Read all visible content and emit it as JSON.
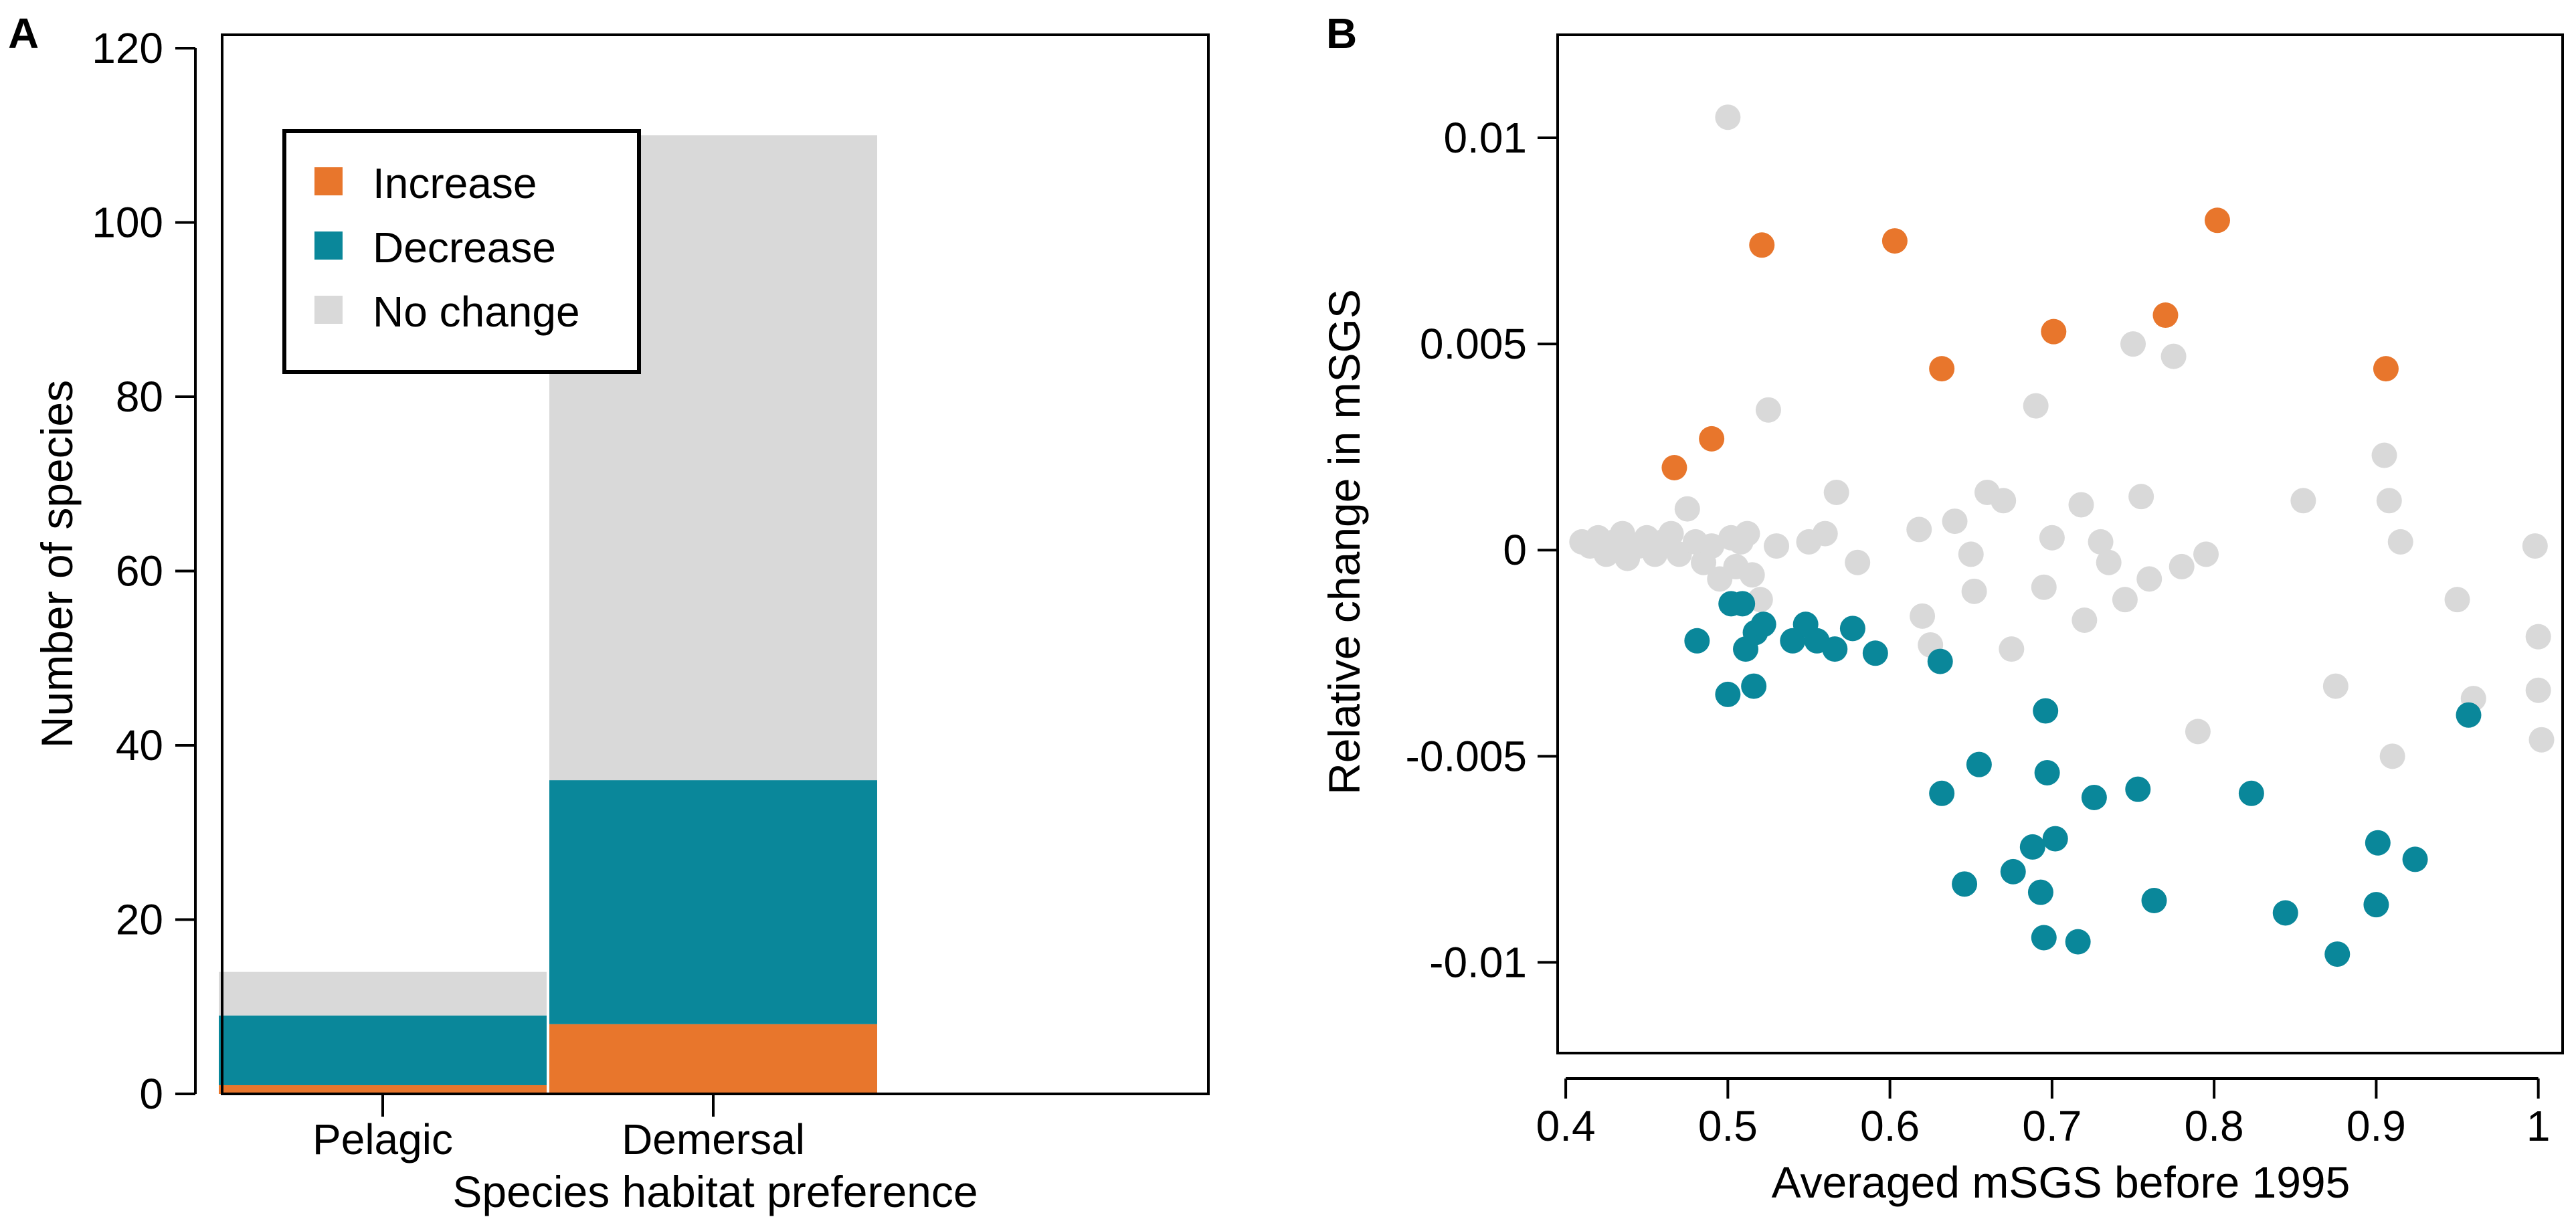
{
  "chart_data": [
    {
      "panel": "A",
      "type": "bar",
      "stacked": true,
      "categories": [
        "Pelagic",
        "Demersal"
      ],
      "series": [
        {
          "name": "Increase",
          "color": "#E8762C",
          "values": [
            1,
            8
          ]
        },
        {
          "name": "Decrease",
          "color": "#0A879A",
          "values": [
            8,
            28
          ]
        },
        {
          "name": "No change",
          "color": "#D9D9D9",
          "values": [
            5,
            74
          ]
        }
      ],
      "xlabel": "Species habitat preference",
      "ylabel": "Number of species",
      "ylim": [
        0,
        120
      ],
      "yticks": [
        0,
        20,
        40,
        60,
        80,
        100,
        120
      ],
      "legend": {
        "placement": "top-left",
        "entries": [
          "Increase",
          "Decrease",
          "No change"
        ]
      }
    },
    {
      "panel": "B",
      "type": "scatter",
      "xlabel": "Averaged mSGS before 1995",
      "ylabel": "Relative change in mSGS",
      "xlim": [
        0.395,
        1.015
      ],
      "ylim": [
        -0.0122,
        0.0125
      ],
      "xticks": [
        0.4,
        0.5,
        0.6,
        0.7,
        0.8,
        0.9,
        1.0
      ],
      "xtick_labels": [
        "0.4",
        "0.5",
        "0.6",
        "0.7",
        "0.8",
        "0.9",
        "1"
      ],
      "yticks": [
        -0.01,
        -0.005,
        0,
        0.005,
        0.01
      ],
      "ytick_labels": [
        "-0.01",
        "-0.005",
        "0",
        "0.005",
        "0.01"
      ],
      "series": [
        {
          "name": "Increase",
          "color": "#E8762C",
          "x": [
            0.467,
            0.49,
            0.521,
            0.603,
            0.632,
            0.701,
            0.77,
            0.802,
            0.906
          ],
          "y": [
            0.002,
            0.0027,
            0.0074,
            0.0075,
            0.0044,
            0.0053,
            0.0057,
            0.008,
            0.0044
          ]
        },
        {
          "name": "Decrease",
          "color": "#0A879A",
          "x": [
            0.481,
            0.502,
            0.5,
            0.511,
            0.509,
            0.517,
            0.522,
            0.516,
            0.54,
            0.548,
            0.555,
            0.566,
            0.577,
            0.591,
            0.631,
            0.632,
            0.655,
            0.646,
            0.676,
            0.688,
            0.693,
            0.697,
            0.696,
            0.702,
            0.695,
            0.716,
            0.726,
            0.753,
            0.763,
            0.823,
            0.844,
            0.876,
            0.901,
            0.9,
            0.924,
            0.957
          ],
          "y": [
            -0.0022,
            -0.0013,
            -0.0035,
            -0.0024,
            -0.0013,
            -0.002,
            -0.0018,
            -0.0033,
            -0.0022,
            -0.0018,
            -0.0022,
            -0.0024,
            -0.0019,
            -0.0025,
            -0.0027,
            -0.0059,
            -0.0052,
            -0.0081,
            -0.0078,
            -0.0072,
            -0.0083,
            -0.0054,
            -0.0039,
            -0.007,
            -0.0094,
            -0.0095,
            -0.006,
            -0.0058,
            -0.0085,
            -0.0059,
            -0.0088,
            -0.0098,
            -0.0071,
            -0.0086,
            -0.0075,
            -0.004
          ]
        },
        {
          "name": "No change",
          "color": "#D9D9D9",
          "x": [
            0.41,
            0.415,
            0.42,
            0.425,
            0.43,
            0.435,
            0.438,
            0.445,
            0.45,
            0.455,
            0.46,
            0.465,
            0.47,
            0.475,
            0.48,
            0.485,
            0.49,
            0.495,
            0.5,
            0.502,
            0.505,
            0.508,
            0.512,
            0.515,
            0.52,
            0.525,
            0.53,
            0.55,
            0.56,
            0.567,
            0.58,
            0.618,
            0.62,
            0.625,
            0.64,
            0.65,
            0.652,
            0.66,
            0.67,
            0.675,
            0.69,
            0.695,
            0.7,
            0.718,
            0.72,
            0.73,
            0.735,
            0.745,
            0.75,
            0.755,
            0.76,
            0.775,
            0.78,
            0.79,
            0.795,
            0.855,
            0.875,
            0.905,
            0.908,
            0.91,
            0.915,
            0.95,
            0.96,
            0.998,
            1.0,
            1.0,
            1.002
          ],
          "y": [
            0.0002,
            0.0001,
            0.0003,
            -0.0001,
            0.0002,
            0.0004,
            -0.0002,
            0.0001,
            0.0003,
            -0.0001,
            0.0002,
            0.0004,
            -0.0001,
            0.001,
            0.0002,
            -0.0003,
            0.0001,
            -0.0007,
            0.0105,
            0.0003,
            -0.0004,
            0.0002,
            0.0004,
            -0.0006,
            -0.0012,
            0.0034,
            0.0001,
            0.0002,
            0.0004,
            0.0014,
            -0.0003,
            0.0005,
            -0.0016,
            -0.0023,
            0.0007,
            -0.0001,
            -0.001,
            0.0014,
            0.0012,
            -0.0024,
            0.0035,
            -0.0009,
            0.0003,
            0.0011,
            -0.0017,
            0.0002,
            -0.0003,
            -0.0012,
            0.005,
            0.0013,
            -0.0007,
            0.0047,
            -0.0004,
            -0.0044,
            -0.0001,
            0.0012,
            -0.0033,
            0.0023,
            0.0012,
            -0.005,
            0.0002,
            -0.0012,
            -0.0036,
            0.0001,
            -0.0021,
            -0.0034,
            -0.0046
          ]
        }
      ]
    }
  ],
  "panels": {
    "a": {
      "letter": "A"
    },
    "b": {
      "letter": "B"
    }
  }
}
